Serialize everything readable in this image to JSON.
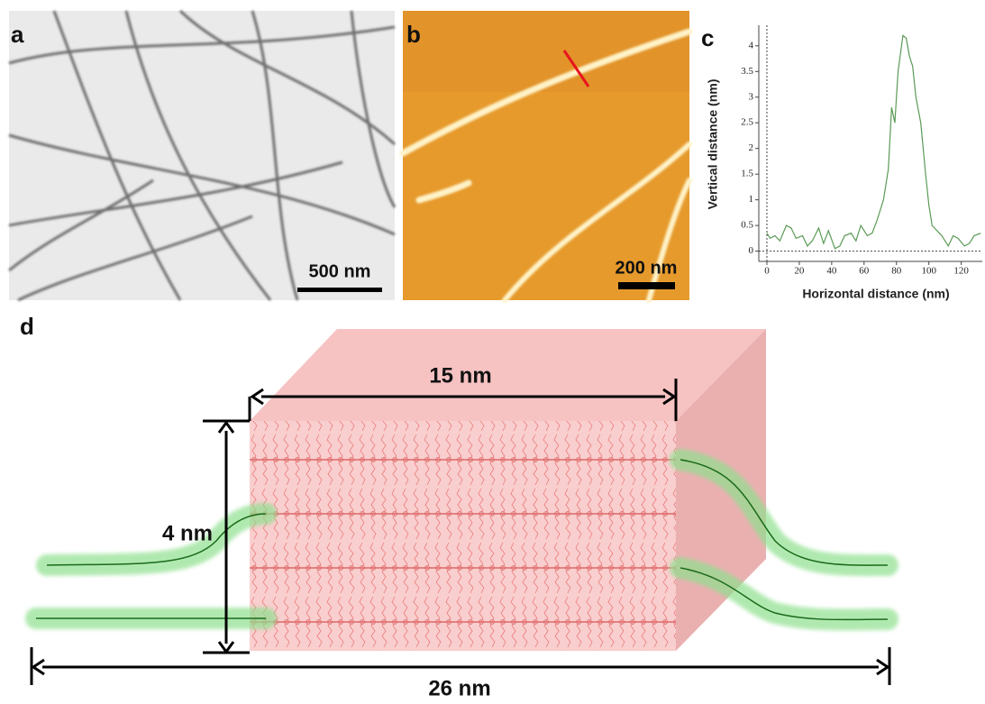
{
  "panel_labels": [
    "a",
    "b",
    "c",
    "d"
  ],
  "scale_bars": [
    "500 nm",
    "200 nm"
  ],
  "chart_data": {
    "type": "line",
    "x_label": "Horizontal distance (nm)",
    "y_label": "Vertical  distance (nm)",
    "x": [
      0,
      2,
      5,
      8,
      12,
      15,
      18,
      22,
      25,
      28,
      32,
      35,
      38,
      42,
      45,
      48,
      52,
      55,
      58,
      62,
      65,
      68,
      72,
      75,
      77,
      79,
      81,
      84,
      86,
      88,
      90,
      92,
      95,
      98,
      100,
      102,
      105,
      108,
      112,
      115,
      118,
      122,
      125,
      128,
      132
    ],
    "series": [
      {
        "color": "#5a9a55",
        "values": [
          0.35,
          0.25,
          0.3,
          0.2,
          0.5,
          0.45,
          0.25,
          0.3,
          0.1,
          0.2,
          0.45,
          0.15,
          0.4,
          0.05,
          0.1,
          0.3,
          0.35,
          0.2,
          0.5,
          0.3,
          0.35,
          0.6,
          1.0,
          1.6,
          2.8,
          2.5,
          3.5,
          4.2,
          4.15,
          3.8,
          3.6,
          3.0,
          2.5,
          1.5,
          0.9,
          0.5,
          0.4,
          0.3,
          0.1,
          0.3,
          0.25,
          0.1,
          0.15,
          0.3,
          0.35
        ]
      }
    ],
    "xlim": [
      -5,
      133
    ],
    "ylim": [
      -0.2,
      4.4
    ],
    "xticks": [
      0,
      20,
      40,
      60,
      80,
      100,
      120
    ],
    "yticks": [
      0,
      0.5,
      1,
      1.5,
      2,
      2.5,
      3,
      3.5,
      4
    ]
  },
  "dimensions": [
    "15 nm",
    "4 nm",
    "26 nm"
  ]
}
